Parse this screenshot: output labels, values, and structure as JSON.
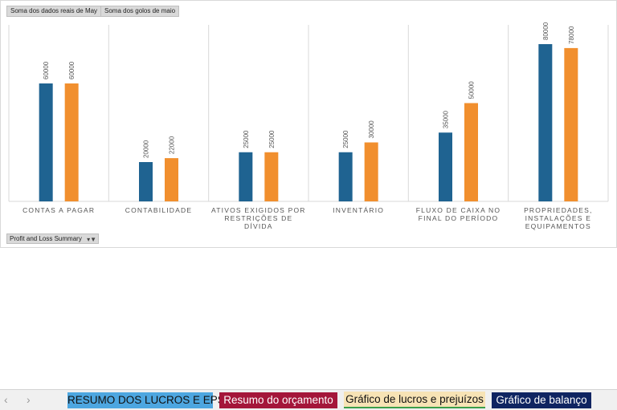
{
  "chart_data": {
    "type": "bar",
    "categories": [
      "CONTAS A PAGAR",
      "CONTABILIDADE",
      "ATIVOS EXIGIDOS POR RESTRIÇÕES DE DÍVIDA",
      "INVENTÁRIO",
      "FLUXO DE CAIXA NO FINAL DO PERÍODO",
      "PROPRIEDADES, INSTALAÇÕES E EQUIPAMENTOS"
    ],
    "series": [
      {
        "name": "Soma dos dados reais de May",
        "color": "#1f6391",
        "values": [
          60000,
          20000,
          25000,
          25000,
          35000,
          80000
        ]
      },
      {
        "name": "Soma dos golos de maio",
        "color": "#f18f2e",
        "values": [
          60000,
          22000,
          25000,
          30000,
          50000,
          78000
        ]
      }
    ]
  },
  "filter": {
    "label": "Profit and Loss Summary"
  },
  "sheet_tabs": [
    "RESUMO DOS LUCROS E EPS",
    "Resumo do orçamento",
    "Gráfico de lucros e prejuízos",
    "Gráfico de balanço"
  ]
}
